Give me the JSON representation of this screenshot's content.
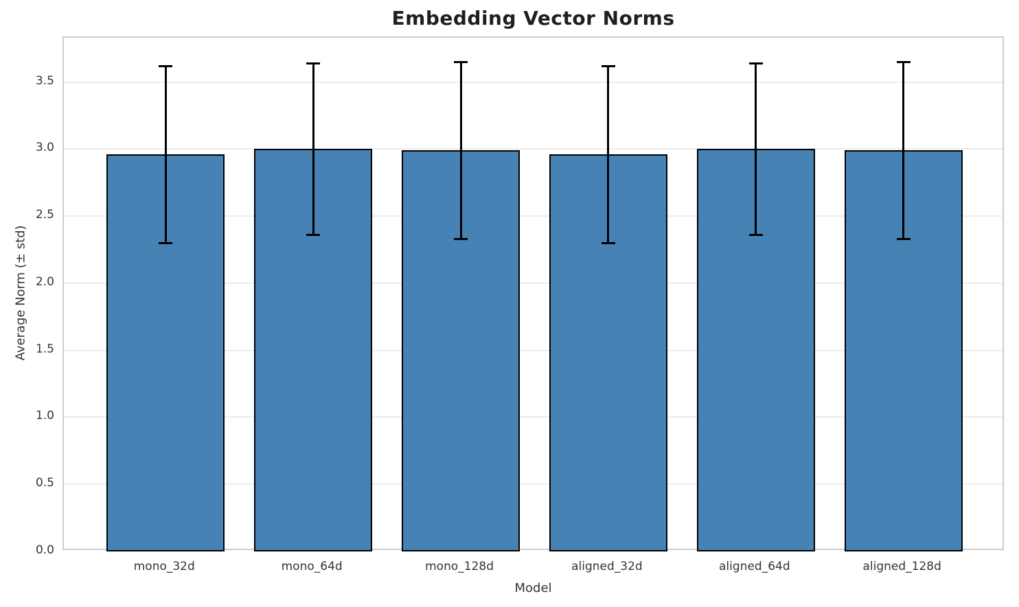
{
  "chart_data": {
    "type": "bar",
    "title": "Embedding Vector Norms",
    "xlabel": "Model",
    "ylabel": "Average Norm (± std)",
    "categories": [
      "mono_32d",
      "mono_64d",
      "mono_128d",
      "aligned_32d",
      "aligned_64d",
      "aligned_128d"
    ],
    "series": [
      {
        "name": "Average Norm",
        "values": [
          2.96,
          3.0,
          2.99,
          2.96,
          3.0,
          2.99
        ],
        "std": [
          0.66,
          0.64,
          0.66,
          0.66,
          0.64,
          0.66
        ]
      }
    ],
    "ylim": [
      0,
      3.83
    ],
    "yticks": [
      0.0,
      0.5,
      1.0,
      1.5,
      2.0,
      2.5,
      3.0,
      3.5
    ],
    "grid": true,
    "legend_position": "none",
    "bar_width_fraction": 0.8,
    "colors": {
      "bar_fill": "#4682B4",
      "bar_edge": "#000000",
      "error_bar": "#000000",
      "grid_line": "#ECECEC",
      "spine": "#CCCCCC",
      "tick_text": "#333333",
      "title_text": "#1F1F1F"
    }
  }
}
